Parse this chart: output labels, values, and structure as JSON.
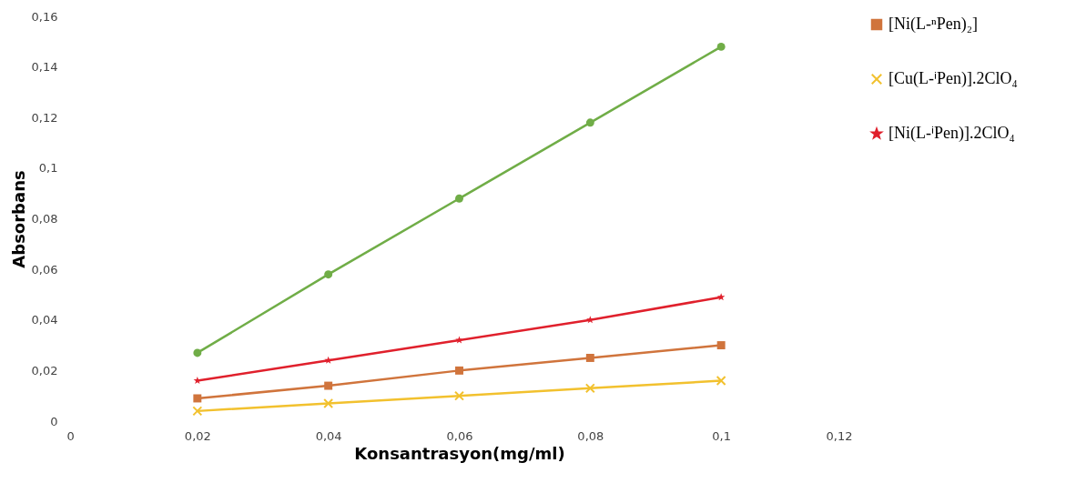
{
  "chart_data": {
    "type": "line",
    "xlabel": "Konsantrasyon(mg/ml)",
    "ylabel": "Absorbans",
    "x": [
      0.02,
      0.04,
      0.06,
      0.08,
      0.1
    ],
    "series": [
      {
        "name": "[Ni(L-ⁿPen)₂]",
        "color": "#d0743c",
        "marker": "square",
        "values": [
          0.009,
          0.014,
          0.02,
          0.025,
          0.03
        ]
      },
      {
        "name": "[Cu(L-ⁱPen)].2ClO₄",
        "color": "#f2c12e",
        "marker": "cross",
        "values": [
          0.004,
          0.007,
          0.01,
          0.013,
          0.016
        ]
      },
      {
        "name": "[Ni(L-ⁱPen)].2ClO₄",
        "color": "#e0202c",
        "marker": "star",
        "values": [
          0.016,
          0.024,
          0.032,
          0.04,
          0.049
        ]
      },
      {
        "color": "#70ad47",
        "marker": "circle",
        "values": [
          0.027,
          0.058,
          0.088,
          0.118,
          0.148
        ]
      }
    ],
    "xlim": [
      0,
      0.12
    ],
    "xticks": [
      0,
      {
        "value": 0.02,
        "label": "0,02"
      },
      {
        "value": 0.04,
        "label": "0,04"
      },
      {
        "value": 0.06,
        "label": "0,06"
      },
      {
        "value": 0.08,
        "label": "0,08"
      },
      {
        "value": 0.1,
        "label": "0,1"
      },
      {
        "value": 0.12,
        "label": "0,12"
      }
    ],
    "ylim": [
      0,
      0.16
    ],
    "yticks": [
      0,
      {
        "value": 0.02,
        "label": "0,02"
      },
      {
        "value": 0.04,
        "label": "0,04"
      },
      {
        "value": 0.06,
        "label": "0,06"
      },
      {
        "value": 0.08,
        "label": "0,08"
      },
      {
        "value": 0.1,
        "label": "0,1"
      },
      {
        "value": 0.12,
        "label": "0,12"
      },
      {
        "value": 0.14,
        "label": "0,14"
      },
      {
        "value": 0.16,
        "label": "0,16"
      }
    ],
    "grid": false,
    "legend": "right"
  }
}
